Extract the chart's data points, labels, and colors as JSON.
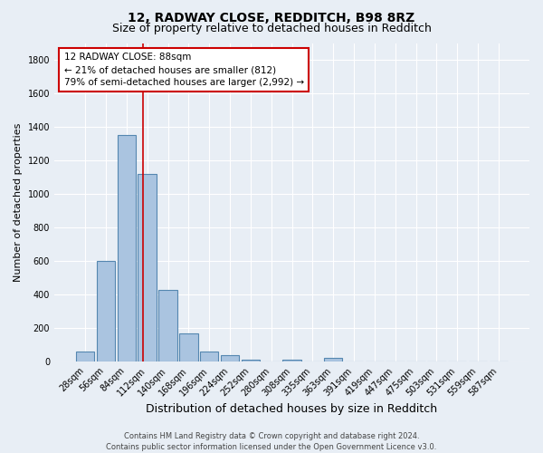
{
  "title": "12, RADWAY CLOSE, REDDITCH, B98 8RZ",
  "subtitle": "Size of property relative to detached houses in Redditch",
  "xlabel": "Distribution of detached houses by size in Redditch",
  "ylabel": "Number of detached properties",
  "footnote1": "Contains HM Land Registry data © Crown copyright and database right 2024.",
  "footnote2": "Contains public sector information licensed under the Open Government Licence v3.0.",
  "bar_labels": [
    "28sqm",
    "56sqm",
    "84sqm",
    "112sqm",
    "140sqm",
    "168sqm",
    "196sqm",
    "224sqm",
    "252sqm",
    "280sqm",
    "308sqm",
    "335sqm",
    "363sqm",
    "391sqm",
    "419sqm",
    "447sqm",
    "475sqm",
    "503sqm",
    "531sqm",
    "559sqm",
    "587sqm"
  ],
  "bar_values": [
    60,
    600,
    1350,
    1120,
    425,
    170,
    60,
    40,
    12,
    0,
    12,
    0,
    20,
    0,
    0,
    0,
    0,
    0,
    0,
    0,
    0
  ],
  "bar_color": "#aac4e0",
  "bar_edgecolor": "#5587b0",
  "bar_linewidth": 0.8,
  "vline_x": 2.79,
  "vline_color": "#cc0000",
  "vline_linewidth": 1.2,
  "annotation_line1": "12 RADWAY CLOSE: 88sqm",
  "annotation_line2": "← 21% of detached houses are smaller (812)",
  "annotation_line3": "79% of semi-detached houses are larger (2,992) →",
  "ylim": [
    0,
    1900
  ],
  "yticks": [
    0,
    200,
    400,
    600,
    800,
    1000,
    1200,
    1400,
    1600,
    1800
  ],
  "background_color": "#e8eef5",
  "plot_background_color": "#e8eef5",
  "grid_color": "#ffffff",
  "title_fontsize": 10,
  "subtitle_fontsize": 9,
  "xlabel_fontsize": 9,
  "ylabel_fontsize": 8,
  "tick_fontsize": 7,
  "annotation_fontsize": 7.5,
  "footnote_fontsize": 6
}
